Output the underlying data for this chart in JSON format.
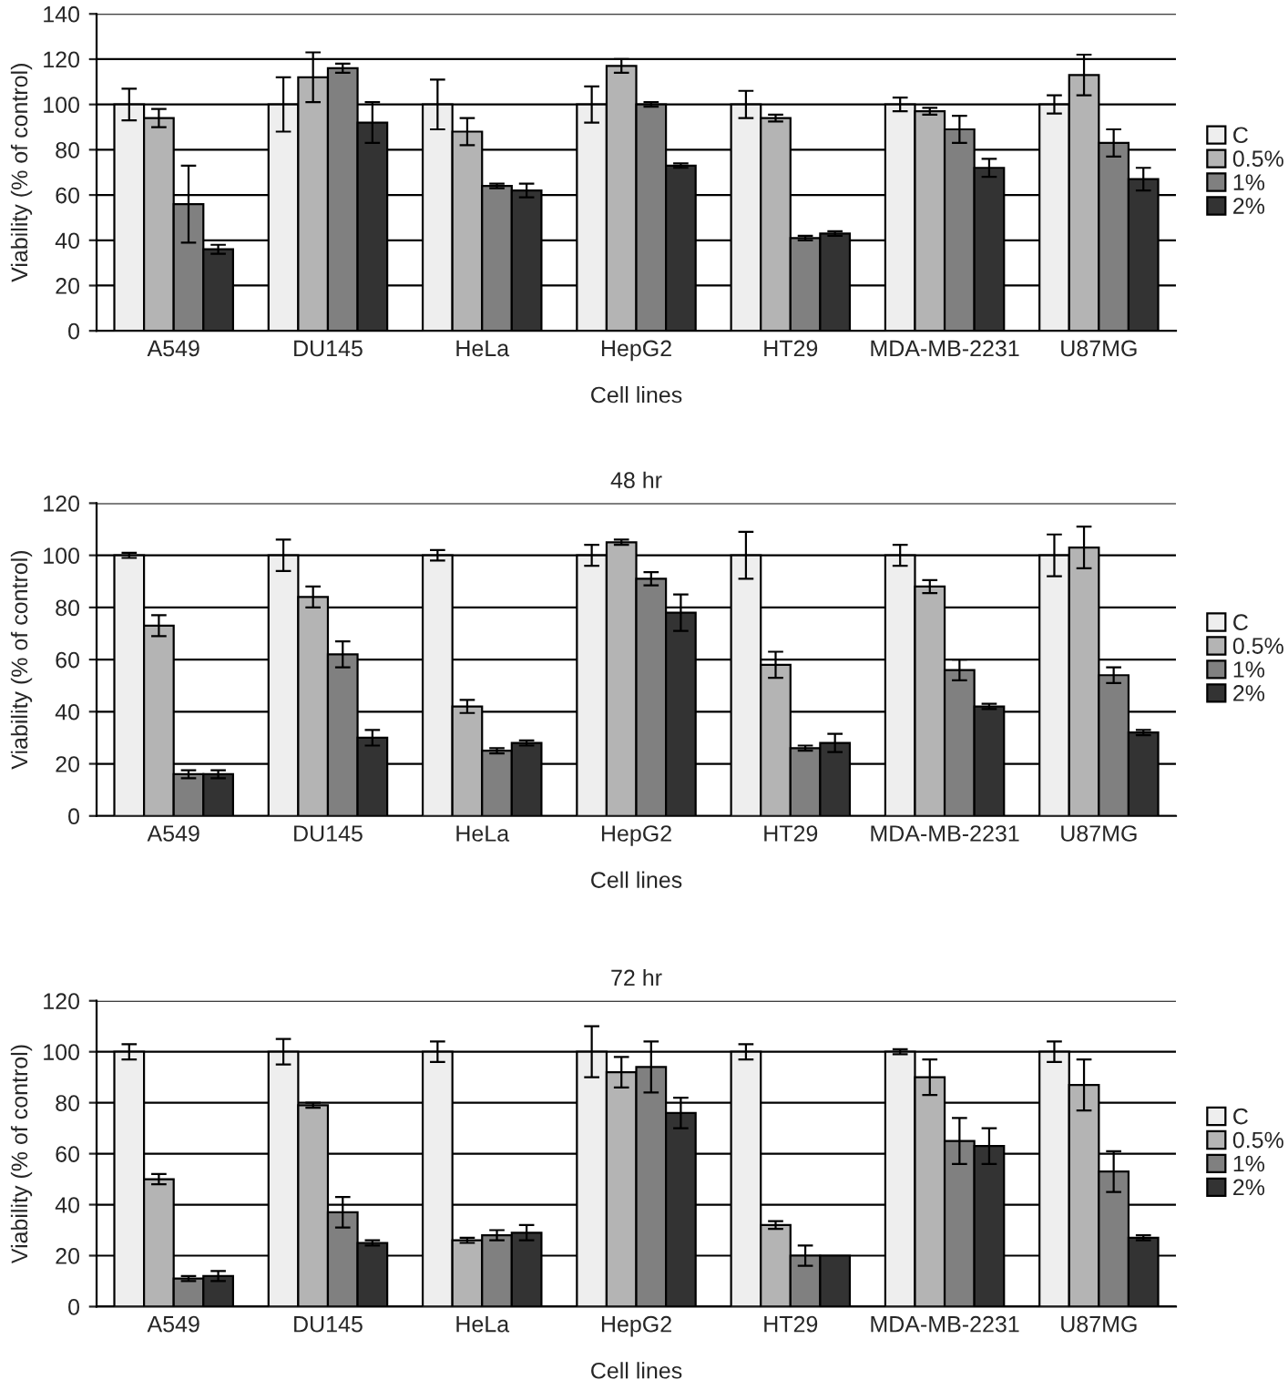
{
  "chart_data": [
    {
      "type": "bar",
      "xlabel": "Cell lines",
      "ylabel": "Viability (% of control)",
      "categories": [
        "A549",
        "DU145",
        "HeLa",
        "HepG2",
        "HT29",
        "MDA-MB-2231",
        "U87MG"
      ],
      "ylim": [
        0,
        140
      ],
      "yticks": [
        0,
        20,
        40,
        60,
        80,
        100,
        120,
        140
      ],
      "grid": "y",
      "legend": "right",
      "series": [
        {
          "name": "C",
          "color": "#eeeeee",
          "values": [
            100,
            100,
            100,
            100,
            100,
            100,
            100
          ],
          "errors": [
            7,
            12,
            11,
            8,
            6,
            3,
            4
          ]
        },
        {
          "name": "0.5%",
          "color": "#b4b4b4",
          "values": [
            94,
            112,
            88,
            117,
            94,
            97,
            113
          ],
          "errors": [
            4,
            11,
            6,
            3,
            1.5,
            1.5,
            9
          ]
        },
        {
          "name": "1%",
          "color": "#808080",
          "values": [
            56,
            116,
            64,
            100,
            41,
            89,
            83
          ],
          "errors": [
            17,
            2,
            1,
            1,
            1,
            6,
            6
          ]
        },
        {
          "name": "2%",
          "color": "#333333",
          "values": [
            36,
            92,
            62,
            73,
            43,
            72,
            67
          ],
          "errors": [
            2,
            9,
            3,
            1,
            1,
            4,
            5
          ]
        }
      ]
    },
    {
      "type": "bar",
      "title": "48 hr",
      "xlabel": "Cell lines",
      "ylabel": "Viability (% of control)",
      "categories": [
        "A549",
        "DU145",
        "HeLa",
        "HepG2",
        "HT29",
        "MDA-MB-2231",
        "U87MG"
      ],
      "ylim": [
        0,
        120
      ],
      "yticks": [
        0,
        20,
        40,
        60,
        80,
        100,
        120
      ],
      "grid": "y",
      "legend": "right",
      "series": [
        {
          "name": "C",
          "color": "#eeeeee",
          "values": [
            100,
            100,
            100,
            100,
            100,
            100,
            100
          ],
          "errors": [
            1,
            6,
            2,
            4,
            9,
            4,
            8
          ]
        },
        {
          "name": "0.5%",
          "color": "#b4b4b4",
          "values": [
            73,
            84,
            42,
            105,
            58,
            88,
            103
          ],
          "errors": [
            4,
            4,
            2.5,
            1,
            5,
            2.5,
            8
          ]
        },
        {
          "name": "1%",
          "color": "#808080",
          "values": [
            16,
            62,
            25,
            91,
            26,
            56,
            54
          ],
          "errors": [
            1.5,
            5,
            1,
            2.5,
            1,
            4,
            3
          ]
        },
        {
          "name": "2%",
          "color": "#333333",
          "values": [
            16,
            30,
            28,
            78,
            28,
            42,
            32
          ],
          "errors": [
            1.5,
            3,
            1,
            7,
            3.5,
            1,
            1
          ]
        }
      ]
    },
    {
      "type": "bar",
      "title": "72 hr",
      "xlabel": "Cell lines",
      "ylabel": "Viability (% of control)",
      "categories": [
        "A549",
        "DU145",
        "HeLa",
        "HepG2",
        "HT29",
        "MDA-MB-2231",
        "U87MG"
      ],
      "ylim": [
        0,
        120
      ],
      "yticks": [
        0,
        20,
        40,
        60,
        80,
        100,
        120
      ],
      "grid": "y",
      "legend": "right",
      "series": [
        {
          "name": "C",
          "color": "#eeeeee",
          "values": [
            100,
            100,
            100,
            100,
            100,
            100,
            100
          ],
          "errors": [
            3,
            5,
            4,
            10,
            3,
            1,
            4
          ]
        },
        {
          "name": "0.5%",
          "color": "#b4b4b4",
          "values": [
            50,
            79,
            26,
            92,
            32,
            90,
            87
          ],
          "errors": [
            2,
            1,
            1,
            6,
            1.5,
            7,
            10
          ]
        },
        {
          "name": "1%",
          "color": "#808080",
          "values": [
            11,
            37,
            28,
            94,
            20,
            65,
            53
          ],
          "errors": [
            1,
            6,
            2,
            10,
            4,
            9,
            8
          ]
        },
        {
          "name": "2%",
          "color": "#333333",
          "values": [
            12,
            25,
            29,
            76,
            20,
            63,
            27
          ],
          "errors": [
            2,
            1,
            3,
            6,
            null,
            7,
            1
          ]
        }
      ]
    }
  ]
}
